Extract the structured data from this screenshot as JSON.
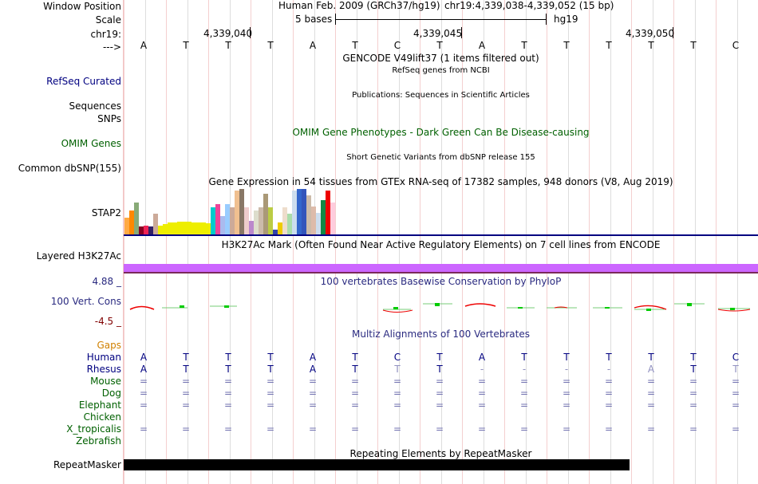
{
  "left": {
    "window_position": "Window Position",
    "scale": "Scale",
    "chrom": "chr19:",
    "strand": "--->",
    "refseq": "RefSeq Curated",
    "sequences": "Sequences",
    "snps": "SNPs",
    "omim": "OMIM Genes",
    "dbsnp": "Common dbSNP(155)",
    "gene": "STAP2",
    "layered": "Layered H3K27Ac",
    "cons_max": "4.88 _",
    "cons": "100 Vert. Cons",
    "cons_min": "-4.5 _",
    "gaps": "Gaps",
    "repeatmasker": "RepeatMasker"
  },
  "header": {
    "assembly": "Human Feb. 2009 (GRCh37/hg19)",
    "position": "chr19:4,339,038-4,339,052 (15 bp)",
    "scale_label": "5 bases",
    "scale_db": "hg19",
    "coords": [
      "4,339,040",
      "4,339,045",
      "4,339,050"
    ]
  },
  "bases": [
    "A",
    "T",
    "T",
    "T",
    "A",
    "T",
    "C",
    "T",
    "A",
    "T",
    "T",
    "T",
    "T",
    "T",
    "C"
  ],
  "tracks": {
    "gencode": "GENCODE V49lift37 (1 items filtered out)",
    "refseq": "RefSeq genes from NCBI",
    "publications": "Publications: Sequences in Scientific Articles",
    "omim": "OMIM Gene Phenotypes - Dark Green Can Be Disease-causing",
    "dbsnp": "Short Genetic Variants from dbSNP release 155",
    "gtex": "Gene Expression in 54 tissues from GTEx RNA-seq of 17382 samples, 948 donors (V8, Aug 2019)",
    "h3k27ac": "H3K27Ac Mark (Often Found Near Active Regulatory Elements) on 7 cell lines from ENCODE",
    "phylop": "100 vertebrates Basewise Conservation by PhyloP",
    "multiz": "Multiz Alignments of 100 Vertebrates",
    "repeats": "Repeating Elements by RepeatMasker"
  },
  "gtex_bars": [
    {
      "v": 0.36,
      "c": "#ffaa44"
    },
    {
      "v": 0.52,
      "c": "#ff8800"
    },
    {
      "v": 0.7,
      "c": "#88aa77"
    },
    {
      "v": 0.18,
      "c": "#880022"
    },
    {
      "v": 0.2,
      "c": "#ee2255"
    },
    {
      "v": 0.18,
      "c": "#332266"
    },
    {
      "v": 0.46,
      "c": "#ccaa99"
    },
    {
      "v": 0.2,
      "c": "#eeee00"
    },
    {
      "v": 0.22,
      "c": "#eeee00"
    },
    {
      "v": 0.26,
      "c": "#eeee00"
    },
    {
      "v": 0.26,
      "c": "#eeee00"
    },
    {
      "v": 0.28,
      "c": "#eeee00"
    },
    {
      "v": 0.28,
      "c": "#eeee00"
    },
    {
      "v": 0.28,
      "c": "#eeee00"
    },
    {
      "v": 0.26,
      "c": "#eeee00"
    },
    {
      "v": 0.26,
      "c": "#eeee00"
    },
    {
      "v": 0.26,
      "c": "#eeee00"
    },
    {
      "v": 0.24,
      "c": "#eeee00"
    },
    {
      "v": 0.6,
      "c": "#00cccc"
    },
    {
      "v": 0.66,
      "c": "#ee4499"
    },
    {
      "v": 0.4,
      "c": "#aabbee"
    },
    {
      "v": 0.66,
      "c": "#99ccff"
    },
    {
      "v": 0.6,
      "c": "#ccaa99"
    },
    {
      "v": 0.96,
      "c": "#f0c090"
    },
    {
      "v": 1.0,
      "c": "#887766"
    },
    {
      "v": 0.6,
      "c": "#eecccc"
    },
    {
      "v": 0.3,
      "c": "#bb88cc"
    },
    {
      "v": 0.52,
      "c": "#ddddcc"
    },
    {
      "v": 0.6,
      "c": "#ccbbaa"
    },
    {
      "v": 0.9,
      "c": "#aa9977"
    },
    {
      "v": 0.6,
      "c": "#bbcc44"
    },
    {
      "v": 0.1,
      "c": "#3344aa"
    },
    {
      "v": 0.26,
      "c": "#eecc00"
    },
    {
      "v": 0.6,
      "c": "#eeddcc"
    },
    {
      "v": 0.46,
      "c": "#aaddaa"
    },
    {
      "v": 0.96,
      "c": "#ccddee"
    },
    {
      "v": 1.0,
      "c": "#3366cc"
    },
    {
      "v": 1.0,
      "c": "#3355bb"
    },
    {
      "v": 0.86,
      "c": "#ccbbaa"
    },
    {
      "v": 0.62,
      "c": "#ddbbaa"
    },
    {
      "v": 0.48,
      "c": "#ccddee"
    },
    {
      "v": 0.76,
      "c": "#118844"
    },
    {
      "v": 0.96,
      "c": "#ee0000"
    },
    {
      "v": 0.7,
      "c": "#ffccdd"
    }
  ],
  "species": [
    {
      "name": "Human",
      "color": "#000080",
      "row": [
        "A",
        "T",
        "T",
        "T",
        "A",
        "T",
        "C",
        "T",
        "A",
        "T",
        "T",
        "T",
        "T",
        "T",
        "C"
      ]
    },
    {
      "name": "Rhesus",
      "color": "#000080",
      "row": [
        "A",
        "T",
        "T",
        "T",
        "A",
        "T",
        "T",
        "T",
        "-",
        "-",
        "-",
        "-",
        "A",
        "T",
        "T"
      ]
    },
    {
      "name": "Mouse",
      "color": "#006000",
      "row": [
        "=",
        "=",
        "=",
        "=",
        "=",
        "=",
        "=",
        "=",
        "=",
        "=",
        "=",
        "=",
        "=",
        "=",
        "="
      ]
    },
    {
      "name": "Dog",
      "color": "#006000",
      "row": [
        "=",
        "=",
        "=",
        "=",
        "=",
        "=",
        "=",
        "=",
        "=",
        "=",
        "=",
        "=",
        "=",
        "=",
        "="
      ]
    },
    {
      "name": "Elephant",
      "color": "#006000",
      "row": [
        "=",
        "=",
        "=",
        "=",
        "=",
        "=",
        "=",
        "=",
        "=",
        "=",
        "=",
        "=",
        "=",
        "=",
        "="
      ]
    },
    {
      "name": "Chicken",
      "color": "#006000",
      "row": [
        "",
        "",
        "",
        "",
        "",
        "",
        "",
        "",
        "",
        "",
        "",
        "",
        "",
        "",
        ""
      ]
    },
    {
      "name": "X_tropicalis",
      "color": "#006000",
      "row": [
        "=",
        "=",
        "=",
        "=",
        "=",
        "=",
        "=",
        "=",
        "=",
        "=",
        "=",
        "=",
        "=",
        "=",
        "="
      ]
    },
    {
      "name": "Zebrafish",
      "color": "#006000",
      "row": [
        "",
        "",
        "",
        "",
        "",
        "",
        "",
        "",
        "",
        "",
        "",
        "",
        "",
        "",
        ""
      ]
    }
  ],
  "colors": {
    "navy": "#000080",
    "omim": "#006000",
    "gaps": "#d08000",
    "cons": "#2a2a80",
    "cons_min": "#800000",
    "h3k27ac": "#cc66ff",
    "repeat": "#000000"
  }
}
